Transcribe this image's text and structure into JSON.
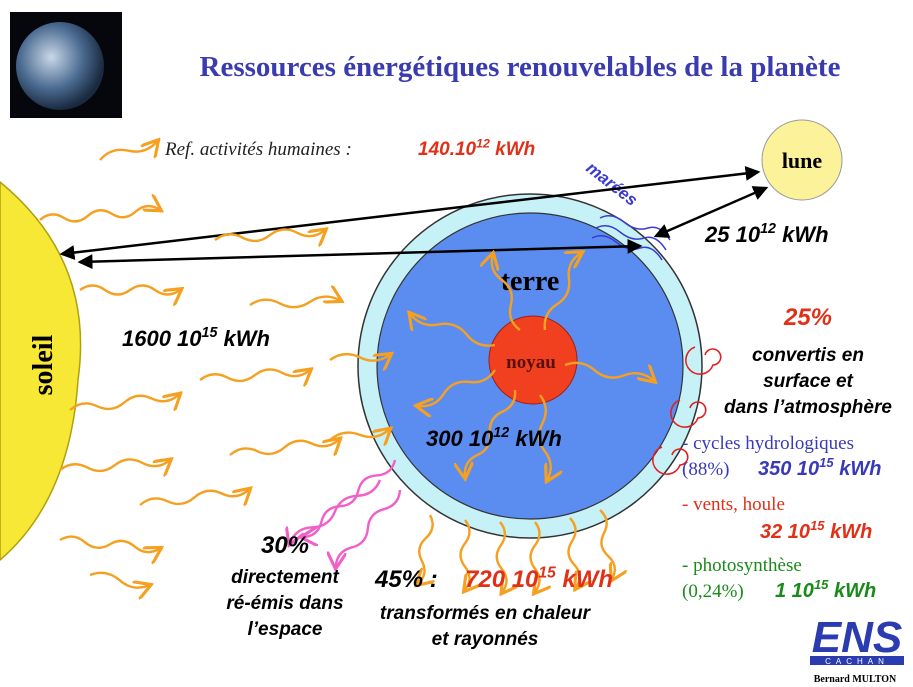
{
  "title": "Ressources énergétiques renouvelables de la planète",
  "reference": {
    "label": "Ref. activités humaines :",
    "value": {
      "base": "140.10",
      "exponent": "12",
      "unit": "kWh"
    }
  },
  "bodies": {
    "sun": "soleil",
    "moon": "lune",
    "earth": "terre",
    "core": "noyau"
  },
  "tides": "marées",
  "flows": {
    "tidal": {
      "base": "25 10",
      "exponent": "12",
      "unit": "kWh"
    },
    "solar": {
      "base": "1600 10",
      "exponent": "15",
      "unit": "kWh"
    },
    "geothermal": {
      "base": "300 10",
      "exponent": "12",
      "unit": "kWh"
    }
  },
  "converted": {
    "percent": "25%",
    "lines": [
      "convertis en",
      "surface et",
      "dans l’atmosphère"
    ],
    "items": [
      {
        "label": "- cycles hydrologiques",
        "share": "(88%)",
        "value": {
          "base": "350 10",
          "exponent": "15",
          "unit": "kWh"
        }
      },
      {
        "label": "- vents, houle",
        "value": {
          "base": "32 10",
          "exponent": "15",
          "unit": "kWh"
        }
      },
      {
        "label": "- photosynthèse",
        "share": "(0,24%)",
        "value": {
          "base": "1 10",
          "exponent": "15",
          "unit": "kWh"
        }
      }
    ]
  },
  "reemitted": {
    "percent": "30%",
    "lines": [
      "directement",
      "ré-émis dans",
      "l’espace"
    ]
  },
  "heat": {
    "percent": "45% :",
    "value": {
      "base": "720 10",
      "exponent": "15",
      "unit": "kWh"
    },
    "lines": [
      "transformés en chaleur",
      "et rayonnés"
    ]
  },
  "logo": {
    "name": "ENS",
    "subtitle": "CACHAN"
  },
  "author": "Bernard MULTON"
}
